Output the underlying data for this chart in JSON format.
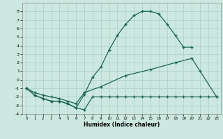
{
  "bg_color": "#cce8e0",
  "grid_color": "#aacfc8",
  "line_color": "#1a6655",
  "xlabel": "Humidex (Indice chaleur)",
  "xlim": [
    -0.5,
    23.5
  ],
  "ylim": [
    -4,
    9
  ],
  "xticks": [
    0,
    1,
    2,
    3,
    4,
    5,
    6,
    7,
    8,
    9,
    10,
    11,
    12,
    13,
    14,
    15,
    16,
    17,
    18,
    19,
    20,
    21,
    22,
    23
  ],
  "yticks": [
    -4,
    -3,
    -2,
    -1,
    0,
    1,
    2,
    3,
    4,
    5,
    6,
    7,
    8
  ],
  "curve1_x": [
    0,
    1,
    2,
    3,
    4,
    5,
    6,
    7,
    8,
    9,
    10,
    11,
    12,
    13,
    14,
    15,
    16,
    17,
    18,
    19,
    20
  ],
  "curve1_y": [
    -1,
    -1.8,
    -2.2,
    -2.5,
    -2.5,
    -2.8,
    -3.3,
    -1.7,
    0.3,
    1.5,
    3.5,
    5.2,
    6.5,
    7.5,
    8.0,
    8.0,
    7.7,
    6.5,
    5.2,
    3.8,
    3.8
  ],
  "curve2_x": [
    0,
    1,
    2,
    3,
    4,
    5,
    6,
    7,
    9,
    12,
    15,
    18,
    20,
    21,
    23
  ],
  "curve2_y": [
    -1,
    -1.5,
    -1.8,
    -2.0,
    -2.2,
    -2.5,
    -2.8,
    -1.5,
    -0.8,
    0.5,
    1.2,
    2.0,
    2.5,
    1.0,
    -2.0
  ],
  "curve3_x": [
    0,
    1,
    2,
    3,
    4,
    5,
    6,
    7,
    8,
    9,
    10,
    11,
    12,
    13,
    14,
    15,
    16,
    17,
    18,
    19,
    20,
    21,
    22,
    23
  ],
  "curve3_y": [
    -1,
    -1.8,
    -2.2,
    -2.5,
    -2.5,
    -2.8,
    -3.3,
    -3.5,
    -2.0,
    -2.0,
    -2.0,
    -2.0,
    -2.0,
    -2.0,
    -2.0,
    -2.0,
    -2.0,
    -2.0,
    -2.0,
    -2.0,
    -2.0,
    -2.0,
    -2.0,
    -2.0
  ]
}
